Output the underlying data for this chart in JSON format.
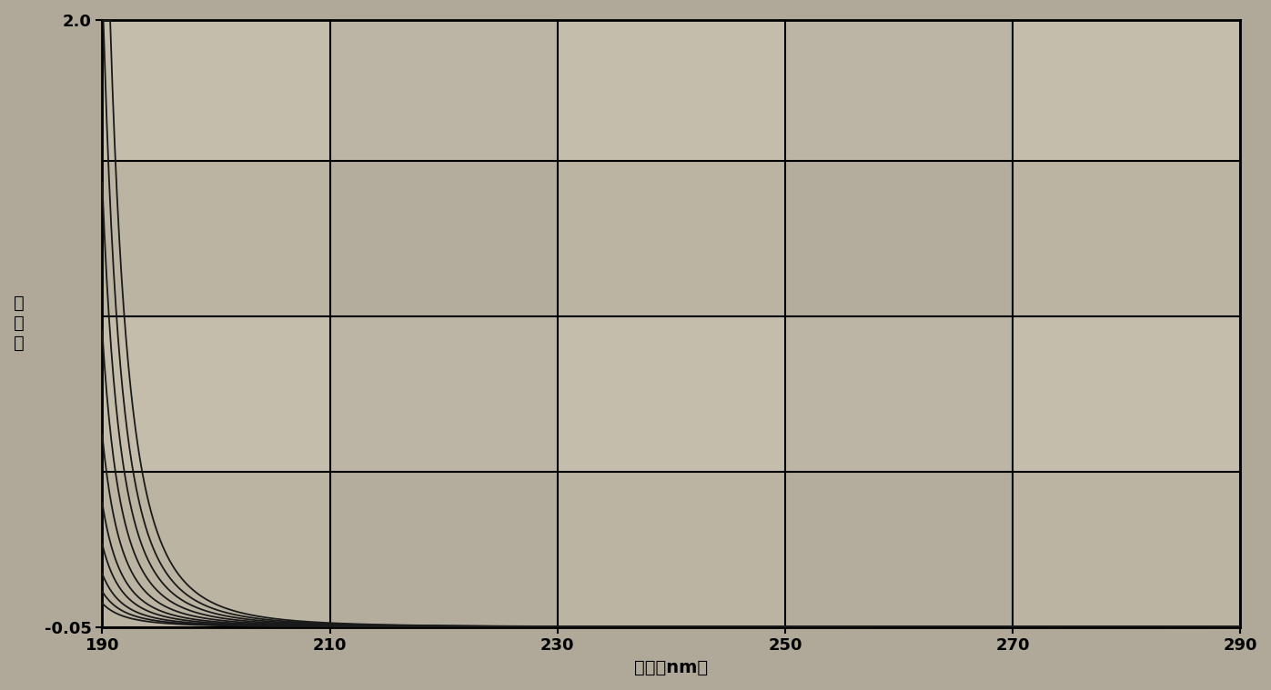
{
  "title": "",
  "xlabel": "波长（nm）",
  "ylabel": "吸\n光\n度",
  "xlim": [
    190,
    290
  ],
  "ylim": [
    -0.05,
    2.0
  ],
  "xticks": [
    190,
    210,
    230,
    250,
    270,
    290
  ],
  "yticks": [
    -0.05,
    2.0
  ],
  "grid_color": "#000000",
  "bg_color": "#b0a898",
  "line_color": "#1a1a1a",
  "x_start": 190,
  "x_end": 290,
  "curves": [
    {
      "A": 0.08,
      "B": 2.5,
      "C": -0.05
    },
    {
      "A": 0.12,
      "B": 2.6,
      "C": -0.05
    },
    {
      "A": 0.18,
      "B": 2.7,
      "C": -0.05
    },
    {
      "A": 0.28,
      "B": 2.8,
      "C": -0.05
    },
    {
      "A": 0.42,
      "B": 2.9,
      "C": -0.05
    },
    {
      "A": 0.65,
      "B": 3.0,
      "C": -0.05
    },
    {
      "A": 1.0,
      "B": 3.1,
      "C": -0.05
    },
    {
      "A": 1.5,
      "B": 3.2,
      "C": -0.05
    },
    {
      "A": 2.2,
      "B": 3.3,
      "C": -0.05
    },
    {
      "A": 3.2,
      "B": 3.4,
      "C": -0.05
    }
  ],
  "band_colors": [
    "#c8c0b0",
    "#b0a898",
    "#c8c0b0",
    "#b0a898"
  ]
}
